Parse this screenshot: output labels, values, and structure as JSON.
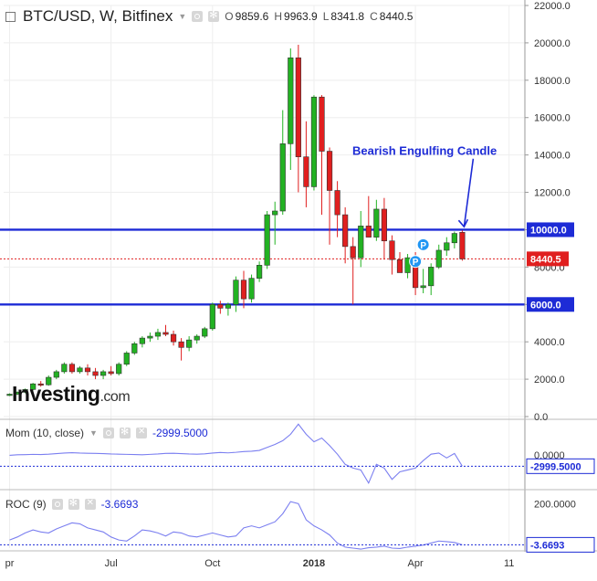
{
  "header": {
    "symbol": "BTC/USD, W, Bitfinex",
    "ohlc": [
      {
        "key": "O",
        "value": "9859.6"
      },
      {
        "key": "H",
        "value": "9963.9"
      },
      {
        "key": "L",
        "value": "8341.8"
      },
      {
        "key": "C",
        "value": "8440.5"
      }
    ]
  },
  "logo": {
    "brand": "Investing",
    "suffix": ".com"
  },
  "annotation": {
    "text": "Bearish Engulfing Candle",
    "color": "#1d2bd6"
  },
  "colors": {
    "up": "#22b222",
    "down": "#e01f1f",
    "level": "#1d2bd6",
    "indicator": "#7b7ff0"
  },
  "mom_panel": {
    "legend": "Mom (10, close)",
    "value": "-2999.5000",
    "axis_labels": [
      "0.0000"
    ],
    "value_label": "-2999.5000"
  },
  "roc_panel": {
    "legend": "ROC (9)",
    "value": "-3.6693",
    "axis_labels": [
      "200.0000"
    ],
    "value_label": "-3.6693"
  },
  "x_axis_labels": [
    {
      "label": "pr",
      "week": 0
    },
    {
      "label": "Jul",
      "week": 13
    },
    {
      "label": "Oct",
      "week": 26
    },
    {
      "label": "2018",
      "week": 39
    },
    {
      "label": "Apr",
      "week": 52
    },
    {
      "label": "11",
      "week": 64
    }
  ],
  "chart_data": [
    {
      "type": "candlestick",
      "title": "BTC/USD, W, Bitfinex",
      "ylim": [
        0,
        22000
      ],
      "y_ticks": [
        0,
        2000,
        4000,
        6000,
        8000,
        10000,
        12000,
        14000,
        16000,
        18000,
        20000,
        22000
      ],
      "y_tick_labels": [
        "0.0",
        "2000.0",
        "4000.0",
        "6000.0",
        "8000.0",
        "10000.0",
        "12000.0",
        "14000.0",
        "16000.0",
        "18000.0",
        "20000.0",
        "22000.0"
      ],
      "horizontal_levels": [
        {
          "value": 10000,
          "label": "10000.0"
        },
        {
          "value": 6000,
          "label": "6000.0"
        }
      ],
      "last_price": {
        "value": 8440.5,
        "label": "8440.5"
      },
      "candles": [
        {
          "o": 1150,
          "h": 1240,
          "l": 1100,
          "c": 1200
        },
        {
          "o": 1200,
          "h": 1350,
          "l": 1150,
          "c": 1300
        },
        {
          "o": 1300,
          "h": 1500,
          "l": 1250,
          "c": 1450
        },
        {
          "o": 1450,
          "h": 1800,
          "l": 1400,
          "c": 1750
        },
        {
          "o": 1750,
          "h": 1900,
          "l": 1600,
          "c": 1700
        },
        {
          "o": 1700,
          "h": 2200,
          "l": 1650,
          "c": 2100
        },
        {
          "o": 2100,
          "h": 2500,
          "l": 2000,
          "c": 2400
        },
        {
          "o": 2400,
          "h": 2900,
          "l": 2300,
          "c": 2800
        },
        {
          "o": 2800,
          "h": 2900,
          "l": 2300,
          "c": 2400
        },
        {
          "o": 2400,
          "h": 2700,
          "l": 2300,
          "c": 2600
        },
        {
          "o": 2600,
          "h": 2800,
          "l": 2200,
          "c": 2400
        },
        {
          "o": 2400,
          "h": 2600,
          "l": 2000,
          "c": 2200
        },
        {
          "o": 2200,
          "h": 2500,
          "l": 2000,
          "c": 2400
        },
        {
          "o": 2400,
          "h": 2700,
          "l": 2200,
          "c": 2300
        },
        {
          "o": 2300,
          "h": 2900,
          "l": 2200,
          "c": 2800
        },
        {
          "o": 2800,
          "h": 3500,
          "l": 2700,
          "c": 3400
        },
        {
          "o": 3400,
          "h": 4000,
          "l": 3300,
          "c": 3900
        },
        {
          "o": 3900,
          "h": 4300,
          "l": 3700,
          "c": 4200
        },
        {
          "o": 4200,
          "h": 4500,
          "l": 4000,
          "c": 4300
        },
        {
          "o": 4300,
          "h": 4700,
          "l": 4100,
          "c": 4500
        },
        {
          "o": 4500,
          "h": 4900,
          "l": 4300,
          "c": 4400
        },
        {
          "o": 4400,
          "h": 4600,
          "l": 3800,
          "c": 4000
        },
        {
          "o": 4000,
          "h": 4200,
          "l": 3000,
          "c": 3700
        },
        {
          "o": 3700,
          "h": 4300,
          "l": 3500,
          "c": 4100
        },
        {
          "o": 4100,
          "h": 4400,
          "l": 3900,
          "c": 4300
        },
        {
          "o": 4300,
          "h": 4800,
          "l": 4200,
          "c": 4700
        },
        {
          "o": 4700,
          "h": 6100,
          "l": 4600,
          "c": 6000
        },
        {
          "o": 6000,
          "h": 6200,
          "l": 5500,
          "c": 5800
        },
        {
          "o": 5800,
          "h": 6100,
          "l": 5400,
          "c": 6000
        },
        {
          "o": 6000,
          "h": 7500,
          "l": 5600,
          "c": 7300
        },
        {
          "o": 7300,
          "h": 7800,
          "l": 5800,
          "c": 6300
        },
        {
          "o": 6300,
          "h": 7600,
          "l": 6100,
          "c": 7400
        },
        {
          "o": 7400,
          "h": 8300,
          "l": 7200,
          "c": 8100
        },
        {
          "o": 8100,
          "h": 11000,
          "l": 7900,
          "c": 10800
        },
        {
          "o": 10800,
          "h": 11500,
          "l": 9200,
          "c": 11000
        },
        {
          "o": 11000,
          "h": 16400,
          "l": 10800,
          "c": 14600
        },
        {
          "o": 14600,
          "h": 19700,
          "l": 13200,
          "c": 19200
        },
        {
          "o": 19200,
          "h": 19900,
          "l": 12000,
          "c": 13900
        },
        {
          "o": 13900,
          "h": 15800,
          "l": 11200,
          "c": 12300
        },
        {
          "o": 12300,
          "h": 17200,
          "l": 12100,
          "c": 17100
        },
        {
          "o": 17100,
          "h": 17200,
          "l": 10800,
          "c": 14200
        },
        {
          "o": 14200,
          "h": 14400,
          "l": 9200,
          "c": 12100
        },
        {
          "o": 12100,
          "h": 12600,
          "l": 9600,
          "c": 10800
        },
        {
          "o": 10800,
          "h": 11200,
          "l": 8200,
          "c": 9100
        },
        {
          "o": 9100,
          "h": 9600,
          "l": 6000,
          "c": 8500
        },
        {
          "o": 8500,
          "h": 11000,
          "l": 8000,
          "c": 10200
        },
        {
          "o": 10200,
          "h": 11800,
          "l": 9700,
          "c": 9600
        },
        {
          "o": 9600,
          "h": 11600,
          "l": 9400,
          "c": 11100
        },
        {
          "o": 11100,
          "h": 11700,
          "l": 8400,
          "c": 9400
        },
        {
          "o": 9400,
          "h": 9700,
          "l": 7600,
          "c": 8400
        },
        {
          "o": 8400,
          "h": 8800,
          "l": 7800,
          "c": 7700
        },
        {
          "o": 7700,
          "h": 8700,
          "l": 7400,
          "c": 8500
        },
        {
          "o": 8500,
          "h": 8800,
          "l": 6500,
          "c": 6900
        },
        {
          "o": 6900,
          "h": 7900,
          "l": 6600,
          "c": 7000
        },
        {
          "o": 7000,
          "h": 8200,
          "l": 6500,
          "c": 8000
        },
        {
          "o": 8000,
          "h": 9200,
          "l": 7900,
          "c": 8900
        },
        {
          "o": 8900,
          "h": 9600,
          "l": 8600,
          "c": 9300
        },
        {
          "o": 9300,
          "h": 9900,
          "l": 9000,
          "c": 9800
        },
        {
          "o": 9860,
          "h": 9964,
          "l": 8342,
          "c": 8440
        }
      ],
      "markers": [
        {
          "label": "P",
          "week": 52,
          "value": 8300
        },
        {
          "label": "P",
          "week": 53,
          "value": 9200
        }
      ],
      "annotation_arrow_week": 58
    },
    {
      "type": "line",
      "name": "Mom (10, close)",
      "ylim": [
        -9000,
        9000
      ],
      "ref_value": -2999.5,
      "values": [
        -100,
        50,
        80,
        150,
        100,
        200,
        350,
        500,
        600,
        500,
        450,
        400,
        350,
        250,
        200,
        150,
        100,
        50,
        150,
        250,
        400,
        450,
        350,
        250,
        200,
        300,
        500,
        650,
        550,
        700,
        900,
        1000,
        1200,
        2000,
        2800,
        3800,
        5500,
        8200,
        5500,
        3500,
        4500,
        2500,
        200,
        -2500,
        -3500,
        -4000,
        -7500,
        -2500,
        -3500,
        -6500,
        -4500,
        -4000,
        -3500,
        -1500,
        200,
        500,
        -800,
        400,
        -2999.5
      ]
    },
    {
      "type": "line",
      "name": "ROC (9)",
      "ylim": [
        -20,
        260
      ],
      "ref_value": -3.6693,
      "values": [
        20,
        35,
        55,
        70,
        60,
        55,
        75,
        90,
        105,
        100,
        80,
        70,
        60,
        35,
        20,
        15,
        40,
        70,
        65,
        55,
        40,
        60,
        55,
        40,
        35,
        45,
        55,
        45,
        35,
        40,
        80,
        90,
        80,
        95,
        110,
        150,
        210,
        200,
        120,
        90,
        70,
        45,
        5,
        -15,
        -20,
        -25,
        -18,
        -15,
        -10,
        -20,
        -22,
        -15,
        -10,
        -5,
        5,
        15,
        12,
        8,
        -3.6693
      ]
    }
  ]
}
